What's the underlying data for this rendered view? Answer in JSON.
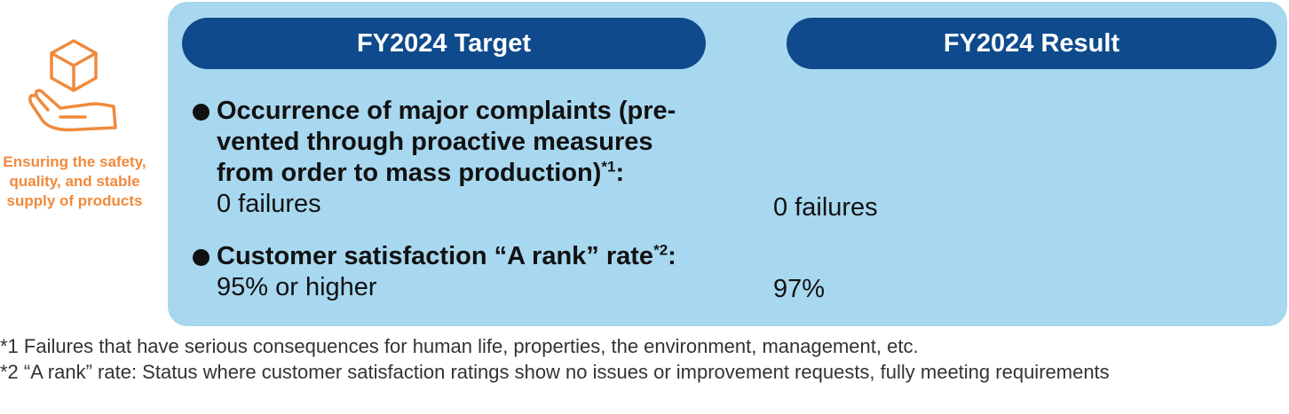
{
  "side": {
    "icon": "hand-holding-box-icon",
    "label": "Ensuring the safety, quality, and stable supply of products"
  },
  "header": {
    "target_label": "FY2024 Target",
    "result_label": "FY2024 Result"
  },
  "items": [
    {
      "title": "Occurrence of major complaints (pre-vented through proactive measures from order to mass production)",
      "title_lines": [
        "Occurrence of major complaints (pre-",
        "vented through proactive measures",
        "from order to mass production)"
      ],
      "note_ref": "*1",
      "colon": ":",
      "target": "0 failures",
      "result": "0 failures"
    },
    {
      "title": "Customer satisfaction “A rank” rate",
      "note_ref": "*2",
      "colon": ":",
      "target": "95% or higher",
      "result": "97%"
    }
  ],
  "footnotes": [
    "*1 Failures that have serious consequences for human life, properties, the environment, management, etc.",
    "*2 “A rank” rate: Status where customer satisfaction ratings show no issues or improvement requests, fully meeting requirements"
  ],
  "colors": {
    "panel": "#a8d8f0",
    "pill": "#0e4a8c",
    "accent": "#f08a3c"
  }
}
